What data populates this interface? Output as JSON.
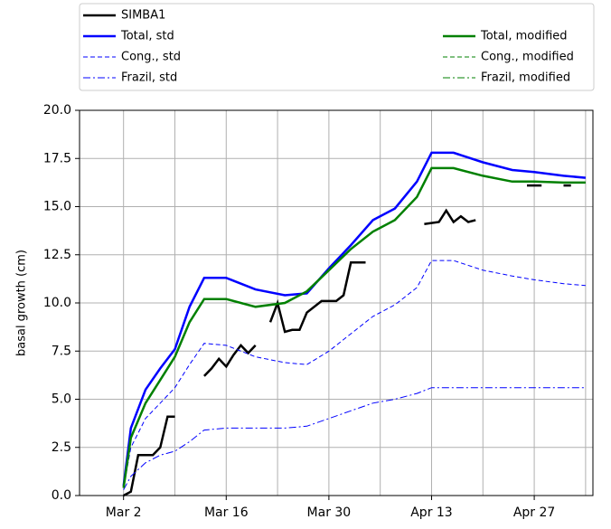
{
  "chart_data": {
    "type": "line",
    "ylabel": "basal growth (cm)",
    "xlim": [
      "Feb 24",
      "May 5"
    ],
    "xticks": [
      "Mar 2",
      "Mar 16",
      "Mar 30",
      "Apr 13",
      "Apr 27"
    ],
    "minor_xgrid": true,
    "ylim": [
      0,
      20
    ],
    "yticks": [
      {
        "value": 0,
        "label": "0.0"
      },
      {
        "value": 2.5,
        "label": "2.5"
      },
      {
        "value": 5,
        "label": "5.0"
      },
      {
        "value": 7.5,
        "label": "7.5"
      },
      {
        "value": 10,
        "label": "10.0"
      },
      {
        "value": 12.5,
        "label": "12.5"
      },
      {
        "value": 15,
        "label": "15.0"
      },
      {
        "value": 17.5,
        "label": "17.5"
      },
      {
        "value": 20,
        "label": "20.0"
      }
    ],
    "grid": true,
    "legend": "top",
    "x": [
      "Mar 2",
      "Mar 3",
      "Mar 5",
      "Mar 7",
      "Mar 9",
      "Mar 11",
      "Mar 13",
      "Mar 16",
      "Mar 20",
      "Mar 24",
      "Mar 27",
      "Mar 30",
      "Apr 2",
      "Apr 5",
      "Apr 8",
      "Apr 11",
      "Apr 13",
      "Apr 16",
      "Apr 20",
      "Apr 24",
      "Apr 27",
      "May 1",
      "May 4"
    ],
    "series": [
      {
        "name": "SIMBA1",
        "color": "#000000",
        "linestyle": "solid",
        "width": 2.5,
        "x": [
          "Mar 2",
          "Mar 3",
          "Mar 4",
          "Mar 6",
          "Mar 7",
          "Mar 8",
          "Mar 9",
          "Mar 11",
          "Mar 13",
          "Mar 14",
          "Mar 15",
          "Mar 16",
          "Mar 17",
          "Mar 18",
          "Mar 19",
          "Mar 20",
          "Mar 21",
          "Mar 22",
          "Mar 23",
          "Mar 24",
          "Mar 25",
          "Mar 26",
          "Mar 27",
          "Mar 29",
          "Mar 31",
          "Apr 1",
          "Apr 2",
          "Apr 4",
          "Apr 8",
          "Apr 12",
          "Apr 14",
          "Apr 15",
          "Apr 16",
          "Apr 17",
          "Apr 18",
          "Apr 19",
          "Apr 22",
          "Apr 26",
          "Apr 28",
          "Apr 29",
          "May 1",
          "May 2"
        ],
        "values": [
          0.0,
          0.2,
          2.1,
          2.1,
          2.5,
          4.1,
          4.1,
          null,
          6.2,
          6.6,
          7.1,
          6.7,
          7.3,
          7.8,
          7.4,
          7.8,
          null,
          9.0,
          10.0,
          8.5,
          8.6,
          8.6,
          9.5,
          10.1,
          10.1,
          10.4,
          12.1,
          12.1,
          null,
          14.1,
          14.2,
          14.8,
          14.2,
          14.5,
          14.2,
          14.3,
          null,
          16.1,
          16.1,
          null,
          16.1,
          16.1
        ]
      },
      {
        "name": "Total, std",
        "color": "#0000ff",
        "linestyle": "solid",
        "width": 2.5,
        "values": [
          0.5,
          3.5,
          5.5,
          6.6,
          7.6,
          9.8,
          11.3,
          11.3,
          10.7,
          10.4,
          10.5,
          11.8,
          13.0,
          14.3,
          14.9,
          16.3,
          17.8,
          17.8,
          17.3,
          16.9,
          16.8,
          16.6,
          16.5
        ]
      },
      {
        "name": "Cong., std",
        "color": "#0000ff",
        "linestyle": "dashed",
        "width": 1,
        "values": [
          0.4,
          2.5,
          4.0,
          4.8,
          5.6,
          6.8,
          7.9,
          7.8,
          7.2,
          6.9,
          6.8,
          7.5,
          8.4,
          9.3,
          9.9,
          10.8,
          12.2,
          12.2,
          11.7,
          11.4,
          11.2,
          11.0,
          10.9
        ]
      },
      {
        "name": "Frazil, std",
        "color": "#0000ff",
        "linestyle": "dashdot",
        "width": 1,
        "values": [
          0.3,
          1.0,
          1.7,
          2.1,
          2.3,
          2.8,
          3.4,
          3.5,
          3.5,
          3.5,
          3.6,
          4.0,
          4.4,
          4.8,
          5.0,
          5.3,
          5.6,
          5.6,
          5.6,
          5.6,
          5.6,
          5.6,
          5.6
        ]
      },
      {
        "name": "Total, modified",
        "color": "#008000",
        "linestyle": "solid",
        "width": 2.5,
        "values": [
          0.4,
          3.0,
          4.8,
          6.0,
          7.2,
          9.0,
          10.2,
          10.2,
          9.8,
          10.0,
          10.6,
          11.7,
          12.8,
          13.7,
          14.3,
          15.5,
          17.0,
          17.0,
          16.6,
          16.3,
          16.3,
          16.25,
          16.25
        ]
      },
      {
        "name": "Cong., modified",
        "color": "#008000",
        "linestyle": "dashed",
        "width": 1,
        "values": [
          0.0,
          0.0,
          0.0,
          0.0,
          0.0,
          0.0,
          0.0,
          0.0,
          0.0,
          0.0,
          0.0,
          0.0,
          0.0,
          0.0,
          0.0,
          0.0,
          0.0,
          0.0,
          0.0,
          0.0,
          0.0,
          0.0,
          0.0
        ]
      },
      {
        "name": "Frazil,  modified",
        "color": "#008000",
        "linestyle": "dashdot",
        "width": 1,
        "values": [
          0.0,
          0.0,
          0.0,
          0.0,
          0.0,
          0.0,
          0.0,
          0.0,
          0.0,
          0.0,
          0.0,
          0.0,
          0.0,
          0.0,
          0.0,
          0.0,
          0.0,
          0.0,
          0.0,
          0.0,
          0.0,
          0.0,
          0.0
        ]
      }
    ]
  }
}
